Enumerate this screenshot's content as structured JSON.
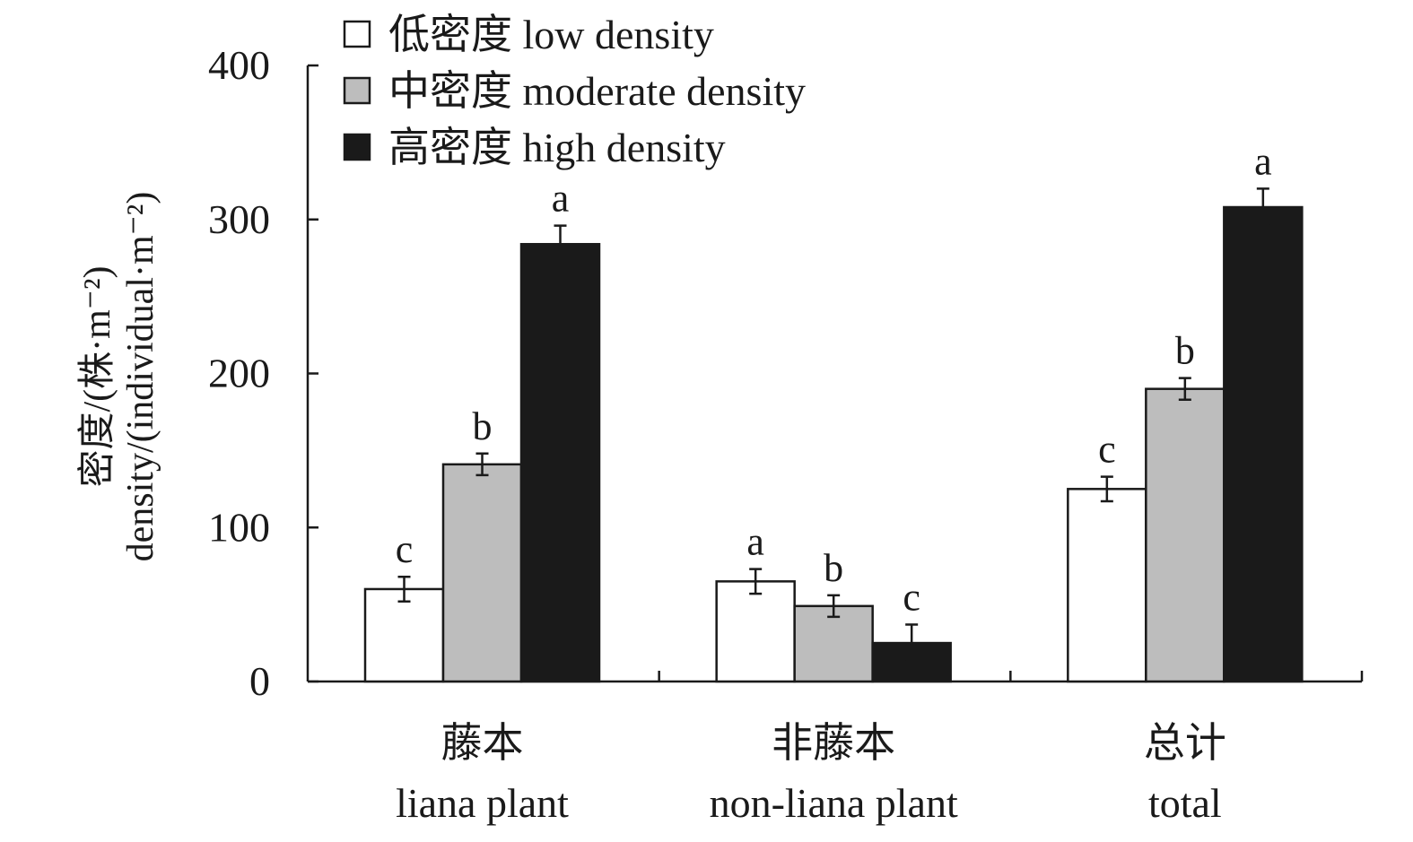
{
  "chart_data": {
    "type": "bar",
    "ylabel_cn": "密度/(株·m⁻²)",
    "ylabel_en": "density/(individual·m⁻²)",
    "xlabel": "",
    "ylim": [
      0,
      400
    ],
    "yticks": [
      0,
      100,
      200,
      300,
      400
    ],
    "grid": false,
    "legend_position": "top-left",
    "categories": [
      {
        "cn": "藤本",
        "en": "liana plant"
      },
      {
        "cn": "非藤本",
        "en": "non-liana plant"
      },
      {
        "cn": "总计",
        "en": "total"
      }
    ],
    "series": [
      {
        "name": "低密度 low density",
        "color": "#ffffff",
        "values": [
          60,
          65,
          125
        ],
        "errors": [
          8,
          8,
          8
        ],
        "labels": [
          "c",
          "a",
          "c"
        ]
      },
      {
        "name": "中密度 moderate density",
        "color": "#bdbdbd",
        "values": [
          141,
          49,
          190
        ],
        "errors": [
          7,
          7,
          7
        ],
        "labels": [
          "b",
          "b",
          "b"
        ]
      },
      {
        "name": "高密度 high density",
        "color": "#1a1a1a",
        "values": [
          284,
          25,
          308
        ],
        "errors": [
          12,
          12,
          12
        ],
        "labels": [
          "a",
          "c",
          "a"
        ]
      }
    ]
  }
}
